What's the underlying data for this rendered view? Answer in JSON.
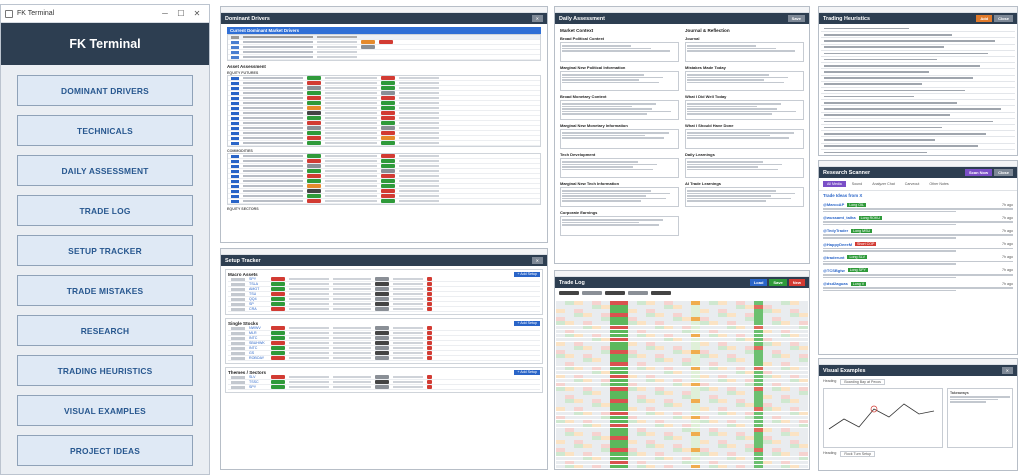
{
  "launcher": {
    "window_title": "FK Terminal",
    "header": "FK Terminal",
    "items": [
      {
        "label": "DOMINANT DRIVERS"
      },
      {
        "label": "TECHNICALS"
      },
      {
        "label": "DAILY ASSESSMENT"
      },
      {
        "label": "TRADE LOG"
      },
      {
        "label": "SETUP TRACKER"
      },
      {
        "label": "TRADE MISTAKES"
      },
      {
        "label": "RESEARCH"
      },
      {
        "label": "TRADING HEURISTICS"
      },
      {
        "label": "VISUAL EXAMPLES"
      },
      {
        "label": "PROJECT IDEAS"
      }
    ]
  },
  "windows": {
    "dominant_drivers": {
      "title": "Dominant Drivers",
      "current_title": "Current Dominant Market Drivers",
      "section_asset": "Asset Assessment",
      "section_equity": "EQUITY FUTURES",
      "section_commodities": "COMMODITIES",
      "section_sectors": "EQUITY SECTORS"
    },
    "daily_assessment": {
      "title": "Daily Assessment",
      "left_title": "Market Context",
      "right_title": "Journal & Reflection",
      "fields_left": [
        "Broad Political Context",
        "Marginal New Political Information",
        "Broad Monetary Context",
        "Marginal New Monetary Information",
        "Tech Development",
        "Marginal New Tech Information",
        "Corporate Earnings"
      ],
      "fields_right": [
        "Journal",
        "Mistakes Made Today",
        "What I Did Well Today",
        "What I Should Have Done",
        "Daily Learnings",
        "AI Trade Learnings"
      ]
    },
    "trading_heuristics": {
      "title": "Trading Heuristics",
      "add_button": "Add",
      "close_button": "Close"
    },
    "setup_tracker": {
      "title": "Setup Tracker",
      "sec1": "Macro Assets",
      "sec2": "Single Stocks",
      "sec3": "Themes / Sectors",
      "add_label": "+ Add Setup",
      "tickers1": [
        "SPY",
        "TSLA",
        "AMGT",
        "TSU",
        "QQ4",
        "SP",
        "CRA"
      ],
      "tickers2": [
        "NWWV",
        "MLR",
        "INTC",
        "SBUHWK",
        "INTC",
        "GS",
        "ROBOAY"
      ],
      "tickers3": [
        "SLV",
        "TSSC",
        "SPY"
      ]
    },
    "trade_log": {
      "title": "Trade Log",
      "btn_load": "Load",
      "btn_save": "Save",
      "btn_new": "New"
    },
    "research_scanner": {
      "title": "Research Scanner",
      "btn_scan": "Scan Now",
      "btn_close": "Close",
      "tabs": [
        "All Media",
        "Sound",
        "Analyzer Chat",
        "Carveout",
        "Other Notes"
      ],
      "trade_ideas": "Trade Ideas from X",
      "posts": [
        {
          "user": "@MarcoAP",
          "tag": "Long OIL",
          "age": "7h ago"
        },
        {
          "user": "@wussamt_talha",
          "tag": "Long ROKU",
          "age": "7h ago"
        },
        {
          "user": "@TedyTrader",
          "tag": "Long MSU",
          "age": "7h ago"
        },
        {
          "user": "@HappyDeeeM",
          "tag": "Short COP",
          "age": "7h ago"
        },
        {
          "user": "@traderunt",
          "tag": "Long SLV",
          "age": "7h ago"
        },
        {
          "user": "@TCSBgtw",
          "tag": "Long SPY",
          "age": "7h ago"
        },
        {
          "user": "@dsd2aguas",
          "tag": "Long V",
          "age": "7h ago"
        }
      ]
    },
    "visual_examples": {
      "title": "Visual Examples",
      "heading": "Heading",
      "heading_value": "Boarding Bay at Pecos",
      "takeaways": "Takeaways",
      "footer_heading": "Heading",
      "footer_value": "Rock Turn Setup"
    }
  },
  "colors": {
    "header": "#2d3e51",
    "nav_bg": "#dfe9f5",
    "nav_text": "#27578f",
    "positive": "#2f9a3a",
    "negative": "#d23b33"
  }
}
